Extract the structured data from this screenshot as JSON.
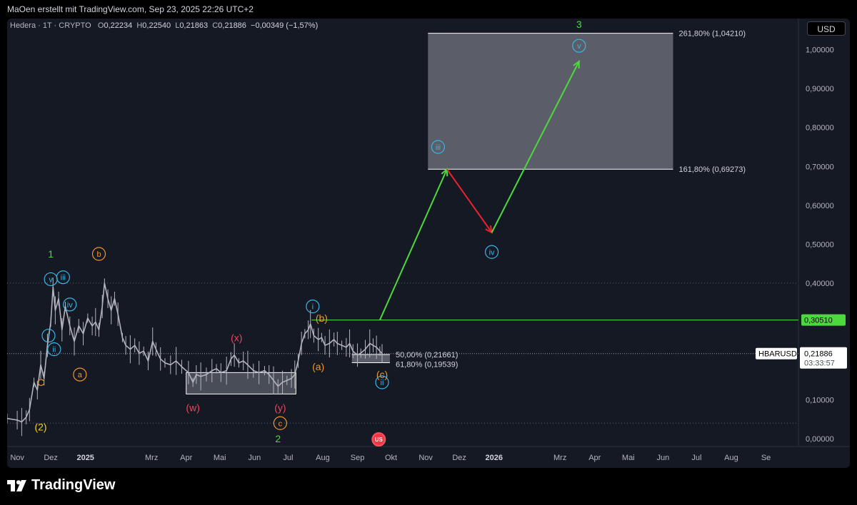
{
  "header": {
    "text": "MaOen erstellt mit TradingView.com, Sep 23, 2025 22:26 UTC+2"
  },
  "legend": {
    "symbol": "Hedera · 1T · CRYPTO",
    "o_label": "O",
    "o": "0,22234",
    "h_label": "H",
    "h": "0,22540",
    "l_label": "L",
    "l": "0,21863",
    "c_label": "C",
    "c": "0,21886",
    "change": "−0,00349 (−1,57%)"
  },
  "currency_button": "USD",
  "footer": {
    "brand": "TradingView"
  },
  "chart_data": {
    "type": "line",
    "title": "Hedera · 1T · CRYPTO",
    "y_axis": {
      "range": [
        -0.02,
        1.08
      ],
      "ticks": [
        {
          "v": 0.0,
          "label": "0,00000"
        },
        {
          "v": 0.1,
          "label": "0,10000"
        },
        {
          "v": 0.2,
          "label": "0,20000"
        },
        {
          "v": 0.3,
          "label": "0,30000"
        },
        {
          "v": 0.4,
          "label": "0,40000"
        },
        {
          "v": 0.5,
          "label": "0,50000"
        },
        {
          "v": 0.6,
          "label": "0,60000"
        },
        {
          "v": 0.7,
          "label": "0,70000"
        },
        {
          "v": 0.8,
          "label": "0,80000"
        },
        {
          "v": 0.9,
          "label": "0,90000"
        },
        {
          "v": 1.0,
          "label": "1,00000"
        }
      ]
    },
    "x_axis": {
      "range": [
        "2024-10-23",
        "2026-09-30"
      ],
      "ticks": [
        {
          "d": "2024-11-01",
          "label": "Nov",
          "bold": false
        },
        {
          "d": "2024-12-01",
          "label": "Dez",
          "bold": false
        },
        {
          "d": "2025-01-01",
          "label": "2025",
          "bold": true
        },
        {
          "d": "2025-03-01",
          "label": "Mrz",
          "bold": false
        },
        {
          "d": "2025-04-01",
          "label": "Apr",
          "bold": false
        },
        {
          "d": "2025-05-01",
          "label": "Mai",
          "bold": false
        },
        {
          "d": "2025-06-01",
          "label": "Jun",
          "bold": false
        },
        {
          "d": "2025-07-01",
          "label": "Jul",
          "bold": false
        },
        {
          "d": "2025-08-01",
          "label": "Aug",
          "bold": false
        },
        {
          "d": "2025-09-01",
          "label": "Sep",
          "bold": false
        },
        {
          "d": "2025-10-01",
          "label": "Okt",
          "bold": false
        },
        {
          "d": "2025-11-01",
          "label": "Nov",
          "bold": false
        },
        {
          "d": "2025-12-01",
          "label": "Dez",
          "bold": false
        },
        {
          "d": "2026-01-01",
          "label": "2026",
          "bold": true
        },
        {
          "d": "2026-03-01",
          "label": "Mrz",
          "bold": false
        },
        {
          "d": "2026-04-01",
          "label": "Apr",
          "bold": false
        },
        {
          "d": "2026-05-01",
          "label": "Mai",
          "bold": false
        },
        {
          "d": "2026-06-01",
          "label": "Jun",
          "bold": false
        },
        {
          "d": "2026-07-01",
          "label": "Jul",
          "bold": false
        },
        {
          "d": "2026-08-01",
          "label": "Aug",
          "bold": false
        },
        {
          "d": "2026-09-01",
          "label": "Se",
          "bold": false
        }
      ]
    },
    "price_series": [
      [
        "2024-10-23",
        0.052
      ],
      [
        "2024-11-01",
        0.048
      ],
      [
        "2024-11-05",
        0.043
      ],
      [
        "2024-11-09",
        0.055
      ],
      [
        "2024-11-12",
        0.075
      ],
      [
        "2024-11-16",
        0.145
      ],
      [
        "2024-11-19",
        0.125
      ],
      [
        "2024-11-22",
        0.19
      ],
      [
        "2024-11-25",
        0.155
      ],
      [
        "2024-11-28",
        0.24
      ],
      [
        "2024-12-01",
        0.3
      ],
      [
        "2024-12-03",
        0.39
      ],
      [
        "2024-12-05",
        0.33
      ],
      [
        "2024-12-08",
        0.36
      ],
      [
        "2024-12-11",
        0.28
      ],
      [
        "2024-12-14",
        0.34
      ],
      [
        "2024-12-18",
        0.29
      ],
      [
        "2024-12-22",
        0.25
      ],
      [
        "2024-12-26",
        0.29
      ],
      [
        "2024-12-30",
        0.27
      ],
      [
        "2025-01-03",
        0.31
      ],
      [
        "2025-01-07",
        0.29
      ],
      [
        "2025-01-10",
        0.3
      ],
      [
        "2025-01-13",
        0.28
      ],
      [
        "2025-01-16",
        0.34
      ],
      [
        "2025-01-18",
        0.4
      ],
      [
        "2025-01-21",
        0.36
      ],
      [
        "2025-01-24",
        0.33
      ],
      [
        "2025-01-27",
        0.36
      ],
      [
        "2025-01-30",
        0.32
      ],
      [
        "2025-02-03",
        0.26
      ],
      [
        "2025-02-06",
        0.24
      ],
      [
        "2025-02-10",
        0.23
      ],
      [
        "2025-02-14",
        0.24
      ],
      [
        "2025-02-18",
        0.22
      ],
      [
        "2025-02-22",
        0.225
      ],
      [
        "2025-02-26",
        0.2
      ],
      [
        "2025-03-02",
        0.25
      ],
      [
        "2025-03-05",
        0.23
      ],
      [
        "2025-03-09",
        0.205
      ],
      [
        "2025-03-13",
        0.195
      ],
      [
        "2025-03-18",
        0.19
      ],
      [
        "2025-03-23",
        0.2
      ],
      [
        "2025-03-28",
        0.185
      ],
      [
        "2025-04-03",
        0.17
      ],
      [
        "2025-04-07",
        0.145
      ],
      [
        "2025-04-10",
        0.165
      ],
      [
        "2025-04-14",
        0.16
      ],
      [
        "2025-04-19",
        0.165
      ],
      [
        "2025-04-24",
        0.175
      ],
      [
        "2025-04-28",
        0.18
      ],
      [
        "2025-05-02",
        0.17
      ],
      [
        "2025-05-07",
        0.175
      ],
      [
        "2025-05-11",
        0.205
      ],
      [
        "2025-05-14",
        0.215
      ],
      [
        "2025-05-18",
        0.195
      ],
      [
        "2025-05-22",
        0.2
      ],
      [
        "2025-05-26",
        0.19
      ],
      [
        "2025-05-31",
        0.175
      ],
      [
        "2025-06-05",
        0.17
      ],
      [
        "2025-06-10",
        0.175
      ],
      [
        "2025-06-14",
        0.165
      ],
      [
        "2025-06-18",
        0.15
      ],
      [
        "2025-06-22",
        0.135
      ],
      [
        "2025-06-26",
        0.145
      ],
      [
        "2025-06-30",
        0.15
      ],
      [
        "2025-07-04",
        0.155
      ],
      [
        "2025-07-07",
        0.165
      ],
      [
        "2025-07-10",
        0.2
      ],
      [
        "2025-07-13",
        0.245
      ],
      [
        "2025-07-16",
        0.27
      ],
      [
        "2025-07-19",
        0.28
      ],
      [
        "2025-07-21",
        0.295
      ],
      [
        "2025-07-24",
        0.265
      ],
      [
        "2025-07-28",
        0.255
      ],
      [
        "2025-07-31",
        0.26
      ],
      [
        "2025-08-03",
        0.24
      ],
      [
        "2025-08-07",
        0.245
      ],
      [
        "2025-08-11",
        0.255
      ],
      [
        "2025-08-14",
        0.245
      ],
      [
        "2025-08-18",
        0.24
      ],
      [
        "2025-08-22",
        0.235
      ],
      [
        "2025-08-25",
        0.245
      ],
      [
        "2025-08-28",
        0.225
      ],
      [
        "2025-09-01",
        0.215
      ],
      [
        "2025-09-04",
        0.22
      ],
      [
        "2025-09-08",
        0.23
      ],
      [
        "2025-09-12",
        0.245
      ],
      [
        "2025-09-15",
        0.24
      ],
      [
        "2025-09-18",
        0.235
      ],
      [
        "2025-09-21",
        0.225
      ],
      [
        "2025-09-23",
        0.219
      ]
    ],
    "price_line": {
      "value": 0.21886,
      "label": "0,21886",
      "symbol": "HBARUSD",
      "countdown": "03:33:57"
    },
    "green_level": {
      "value": 0.3051,
      "label": "0,30510",
      "from": "2025-07-22"
    },
    "dotted_levels": [
      0.4,
      0.04
    ],
    "fib_zones": [
      {
        "from": "2025-11-03",
        "to": "2026-06-10",
        "top": 1.0421,
        "bottom": 0.69273,
        "top_label": "261,80% (1,04210)",
        "bottom_label": "161,80% (0,69273)"
      },
      {
        "from": "2025-08-27",
        "to": "2025-09-30",
        "top": 0.21661,
        "bottom": 0.19539,
        "top_label": "50,00% (0,21661)",
        "bottom_label": "61,80% (0,19539)"
      }
    ],
    "range_boxes": [
      {
        "from": "2025-04-01",
        "to": "2025-07-08",
        "top": 0.17,
        "bottom": 0.115
      }
    ],
    "projection_path": [
      [
        "2025-09-21",
        0.3051,
        "green"
      ],
      [
        "2025-11-20",
        0.69273,
        "red"
      ],
      [
        "2025-12-30",
        0.53,
        "green"
      ],
      [
        "2026-03-18",
        0.97
      ]
    ],
    "wave_labels": [
      {
        "d": "2024-11-22",
        "v": 0.145,
        "text": "C",
        "style": "plain",
        "color": "orange"
      },
      {
        "d": "2024-11-22",
        "v": 0.03,
        "text": "(2)",
        "style": "plain",
        "color": "yellow"
      },
      {
        "d": "2024-11-29",
        "v": 0.265,
        "text": "i",
        "style": "circle",
        "color": "cyan"
      },
      {
        "d": "2024-12-04",
        "v": 0.23,
        "text": "ii",
        "style": "circle",
        "color": "cyan"
      },
      {
        "d": "2024-12-12",
        "v": 0.415,
        "text": "iii",
        "style": "circle",
        "color": "cyan"
      },
      {
        "d": "2024-12-18",
        "v": 0.345,
        "text": "iv",
        "style": "circle",
        "color": "cyan"
      },
      {
        "d": "2024-12-01",
        "v": 0.41,
        "text": "v",
        "style": "circle",
        "color": "cyan"
      },
      {
        "d": "2024-12-01",
        "v": 0.475,
        "text": "1",
        "style": "plain",
        "color": "green"
      },
      {
        "d": "2024-12-27",
        "v": 0.165,
        "text": "a",
        "style": "circle",
        "color": "orange"
      },
      {
        "d": "2025-01-13",
        "v": 0.475,
        "text": "b",
        "style": "circle",
        "color": "orange"
      },
      {
        "d": "2025-04-07",
        "v": 0.08,
        "text": "(w)",
        "style": "plain",
        "color": "red"
      },
      {
        "d": "2025-05-16",
        "v": 0.26,
        "text": "(x)",
        "style": "plain",
        "color": "red"
      },
      {
        "d": "2025-06-24",
        "v": 0.08,
        "text": "(y)",
        "style": "plain",
        "color": "red"
      },
      {
        "d": "2025-06-24",
        "v": 0.04,
        "text": "c",
        "style": "circle",
        "color": "orange"
      },
      {
        "d": "2025-06-22",
        "v": -0.0,
        "text": "2",
        "style": "plain",
        "color": "green"
      },
      {
        "d": "2025-07-23",
        "v": 0.34,
        "text": "i",
        "style": "circle",
        "color": "cyan"
      },
      {
        "d": "2025-07-28",
        "v": 0.185,
        "text": "(a)",
        "style": "plain",
        "color": "orange"
      },
      {
        "d": "2025-07-31",
        "v": 0.31,
        "text": "(b)",
        "style": "plain",
        "color": "orange"
      },
      {
        "d": "2025-09-23",
        "v": 0.165,
        "text": "(c)",
        "style": "plain",
        "color": "orange"
      },
      {
        "d": "2025-09-23",
        "v": 0.145,
        "text": "ii",
        "style": "circle",
        "color": "cyan"
      },
      {
        "d": "2025-11-12",
        "v": 0.75,
        "text": "iii",
        "style": "circle",
        "color": "cyan"
      },
      {
        "d": "2025-12-30",
        "v": 0.48,
        "text": "iv",
        "style": "circle",
        "color": "cyan"
      },
      {
        "d": "2026-03-18",
        "v": 1.065,
        "text": "3",
        "style": "plain",
        "color": "green"
      },
      {
        "d": "2026-03-18",
        "v": 1.01,
        "text": "v",
        "style": "circle",
        "color": "cyan"
      }
    ],
    "event_marker": {
      "d": "2025-09-20",
      "label": "US"
    },
    "colors": {
      "background": "#151924",
      "price": "#b2b5be",
      "green": "#4cd93d",
      "red": "#e8232d",
      "cyan": "#3bb5e6",
      "orange": "#f0962b",
      "yellow": "#f5d21c",
      "label_red": "#f0445a",
      "fib_zone": "#9598a1",
      "axis_text": "#b2b5be"
    }
  }
}
